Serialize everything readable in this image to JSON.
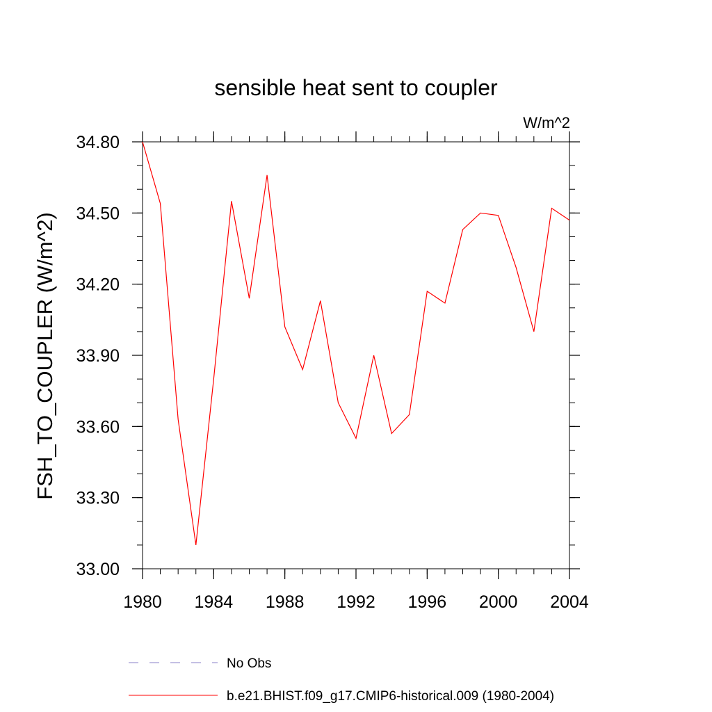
{
  "chart_data": {
    "type": "line",
    "title": "sensible heat sent to coupler",
    "units": "W/m^2",
    "xlabel": "",
    "ylabel": "FSH_TO_COUPLER  (W/m^2)",
    "xlim": [
      1980,
      2004
    ],
    "ylim": [
      33.0,
      34.8
    ],
    "x_ticks": [
      1980,
      1984,
      1988,
      1992,
      1996,
      2000,
      2004
    ],
    "x_tick_labels": [
      "1980",
      "1984",
      "1988",
      "1992",
      "1996",
      "2000",
      "2004"
    ],
    "y_ticks": [
      33.0,
      33.3,
      33.6,
      33.9,
      34.2,
      34.5,
      34.8
    ],
    "y_tick_labels": [
      "33.00",
      "33.30",
      "33.60",
      "33.90",
      "34.20",
      "34.50",
      "34.80"
    ],
    "x_minor_step": 1,
    "y_minor_step": 0.1,
    "grid": false,
    "legend_position": "bottom",
    "series": [
      {
        "name": "b.e21.BHIST.f09_g17.CMIP6-historical.009 (1980-2004)",
        "color": "#ff0000",
        "style": "solid",
        "x": [
          1980,
          1981,
          1982,
          1983,
          1984,
          1985,
          1986,
          1987,
          1988,
          1989,
          1990,
          1991,
          1992,
          1993,
          1994,
          1995,
          1996,
          1997,
          1998,
          1999,
          2000,
          2001,
          2002,
          2003,
          2004
        ],
        "values": [
          34.8,
          34.54,
          33.63,
          33.1,
          33.8,
          34.55,
          34.14,
          34.66,
          34.02,
          33.84,
          34.13,
          33.7,
          33.55,
          33.9,
          33.57,
          33.65,
          34.17,
          34.12,
          34.43,
          34.5,
          34.49,
          34.27,
          34.0,
          34.52,
          34.47
        ]
      }
    ],
    "legend": [
      {
        "label": "No Obs",
        "color": "#8a80c8",
        "style": "dashed"
      },
      {
        "label": "b.e21.BHIST.f09_g17.CMIP6-historical.009 (1980-2004)",
        "color": "#ff0000",
        "style": "solid"
      }
    ]
  }
}
